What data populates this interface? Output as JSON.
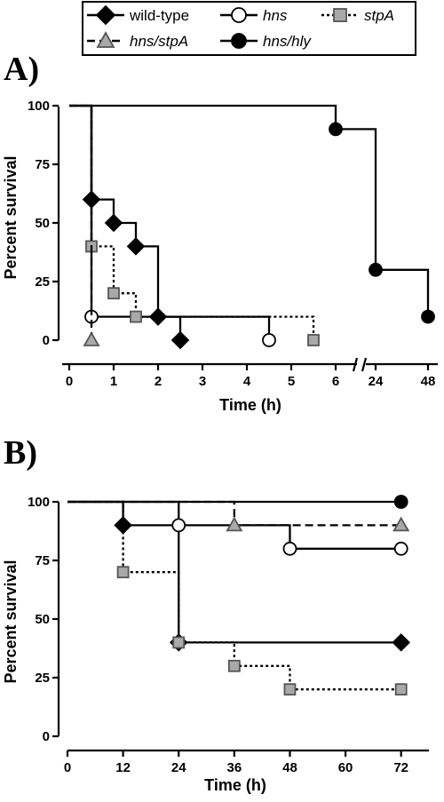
{
  "legend": {
    "entries": [
      {
        "label": "wild-type",
        "italic": false,
        "marker": "diamond",
        "fill": "#000000",
        "dash": "solid"
      },
      {
        "label": "hns",
        "italic": true,
        "marker": "circle",
        "fill": "#ffffff",
        "dash": "solid"
      },
      {
        "label": "stpA",
        "italic": true,
        "marker": "square",
        "fill": "#a9a9a9",
        "dash": "dotted"
      },
      {
        "label": "hns/stpA",
        "italic": true,
        "marker": "triangle",
        "fill": "#a9a9a9",
        "dash": "dashed"
      },
      {
        "label": "hns/hly",
        "italic": true,
        "marker": "circle",
        "fill": "#000000",
        "dash": "solid"
      }
    ]
  },
  "chart_data": [
    {
      "panel_label": "A)",
      "type": "line",
      "step": true,
      "ylabel": "Percent survival",
      "xlabel": "Time (h)",
      "ylim": [
        0,
        100
      ],
      "yticks": [
        "0",
        "25",
        "50",
        "75",
        "100"
      ],
      "xticks": [
        "0",
        "1",
        "2",
        "3",
        "4",
        "5",
        "6",
        "24",
        "48"
      ],
      "x_axis_broken": true,
      "series": [
        {
          "name": "wild-type",
          "points": [
            [
              0.5,
              60
            ],
            [
              1,
              50
            ],
            [
              1.5,
              40
            ],
            [
              2,
              10
            ],
            [
              2.5,
              0
            ]
          ]
        },
        {
          "name": "hns",
          "points": [
            [
              0.5,
              10
            ],
            [
              4.5,
              0
            ]
          ]
        },
        {
          "name": "stpA",
          "points": [
            [
              0.5,
              40
            ],
            [
              1,
              20
            ],
            [
              1.5,
              10
            ],
            [
              5.5,
              0
            ]
          ]
        },
        {
          "name": "hns/stpA",
          "points": [
            [
              0.5,
              0
            ]
          ]
        },
        {
          "name": "hns/hly",
          "points": [
            [
              6,
              90
            ],
            [
              24,
              30
            ],
            [
              48,
              10
            ]
          ]
        }
      ]
    },
    {
      "panel_label": "B)",
      "type": "line",
      "step": true,
      "ylabel": "Percent survival",
      "xlabel": "Time (h)",
      "ylim": [
        0,
        100
      ],
      "xlim": [
        0,
        78
      ],
      "yticks": [
        "0",
        "25",
        "50",
        "75",
        "100"
      ],
      "xticks": [
        "0",
        "12",
        "24",
        "36",
        "48",
        "60",
        "72"
      ],
      "series": [
        {
          "name": "wild-type",
          "points": [
            [
              12,
              90
            ],
            [
              24,
              40
            ],
            [
              72,
              40
            ]
          ]
        },
        {
          "name": "hns",
          "points": [
            [
              24,
              90
            ],
            [
              48,
              80
            ],
            [
              72,
              80
            ]
          ]
        },
        {
          "name": "stpA",
          "points": [
            [
              12,
              70
            ],
            [
              24,
              40
            ],
            [
              36,
              30
            ],
            [
              48,
              20
            ],
            [
              72,
              20
            ]
          ]
        },
        {
          "name": "hns/stpA",
          "points": [
            [
              36,
              90
            ],
            [
              72,
              90
            ]
          ]
        },
        {
          "name": "hns/hly",
          "points": [
            [
              72,
              100
            ]
          ]
        }
      ]
    }
  ]
}
